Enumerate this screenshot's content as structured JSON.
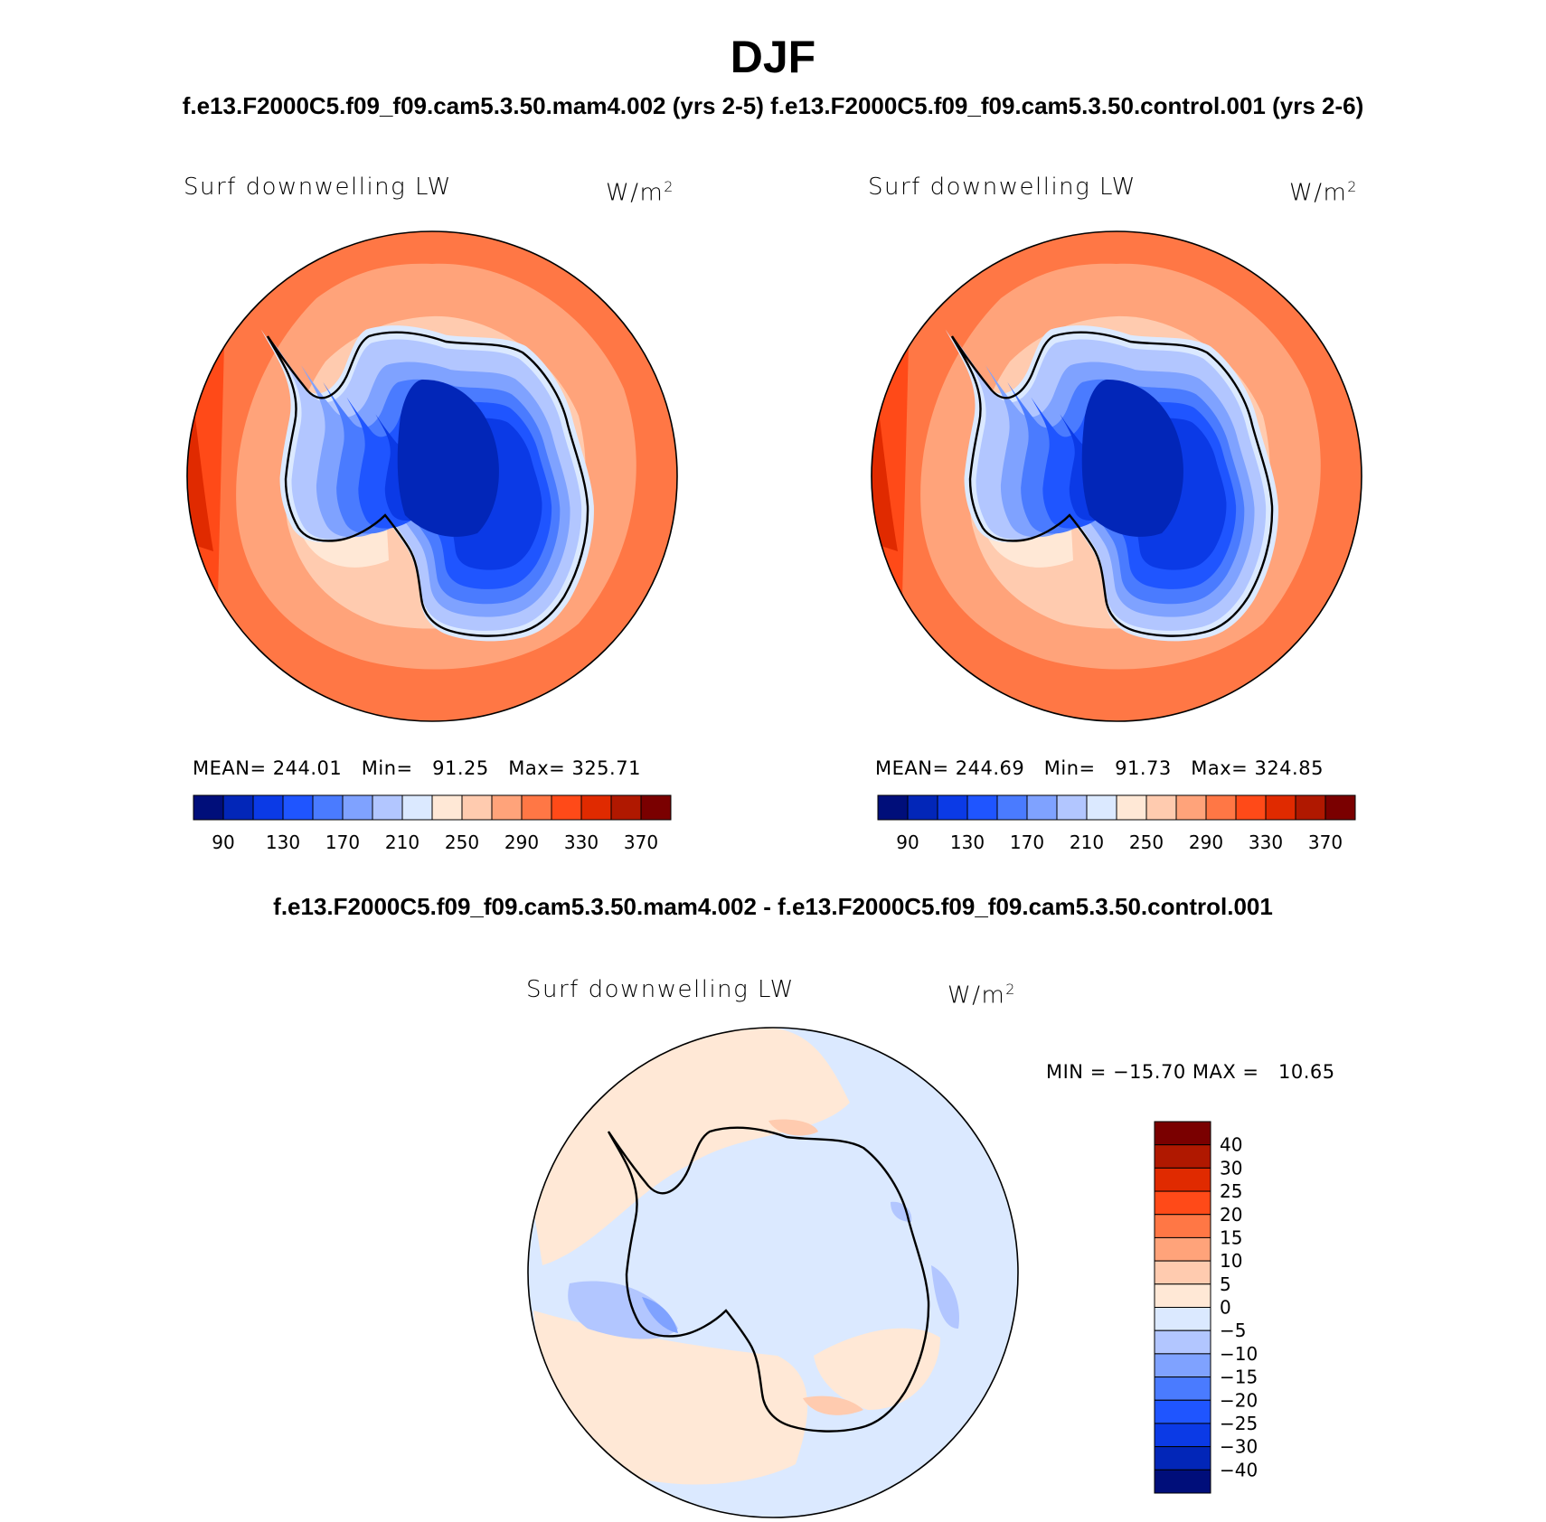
{
  "figure": {
    "title": "DJF",
    "cases_line": "f.e13.F2000C5.f09_f09.cam5.3.50.mam4.002 (yrs 2-5) f.e13.F2000C5.f09_f09.cam5.3.50.control.001 (yrs 2-6)",
    "diff_line": "f.e13.F2000C5.f09_f09.cam5.3.50.mam4.002 - f.e13.F2000C5.f09_f09.cam5.3.50.control.001"
  },
  "panels": [
    {
      "variable": "Surf downwelling LW",
      "unit_base": "W/m",
      "unit_exp": "2",
      "stats": "MEAN= 244.01   Min=   91.25   Max= 325.71"
    },
    {
      "variable": "Surf downwelling LW",
      "unit_base": "W/m",
      "unit_exp": "2",
      "stats": "MEAN= 244.69   Min=   91.73   Max= 324.85"
    },
    {
      "variable": "Surf downwelling LW",
      "unit_base": "W/m",
      "unit_exp": "2",
      "stats": "MIN = −15.70 MAX =   10.65"
    }
  ],
  "colorbar_main": {
    "colors": [
      "#000e7a",
      "#0226b8",
      "#0b3ae6",
      "#1f55ff",
      "#4a7bff",
      "#7fa2ff",
      "#b2c6ff",
      "#dbe9ff",
      "#ffe8d6",
      "#ffcbaf",
      "#ffa37a",
      "#ff7745",
      "#ff4a18",
      "#e02a00",
      "#b01800",
      "#7a0000"
    ],
    "labels": [
      "90",
      "130",
      "170",
      "210",
      "250",
      "290",
      "330",
      "370"
    ]
  },
  "colorbar_diff": {
    "colors_top_to_bottom": [
      "#7a0000",
      "#b01800",
      "#e02a00",
      "#ff4a18",
      "#ff7745",
      "#ffa37a",
      "#ffcbaf",
      "#ffe8d6",
      "#dbe9ff",
      "#b2c6ff",
      "#7fa2ff",
      "#4a7bff",
      "#1f55ff",
      "#0b3ae6",
      "#0226b8",
      "#000e7a"
    ],
    "labels_top_to_bottom": [
      "40",
      "30",
      "25",
      "20",
      "15",
      "10",
      "5",
      "0",
      "−5",
      "−10",
      "−15",
      "−20",
      "−25",
      "−30",
      "−40"
    ]
  }
}
